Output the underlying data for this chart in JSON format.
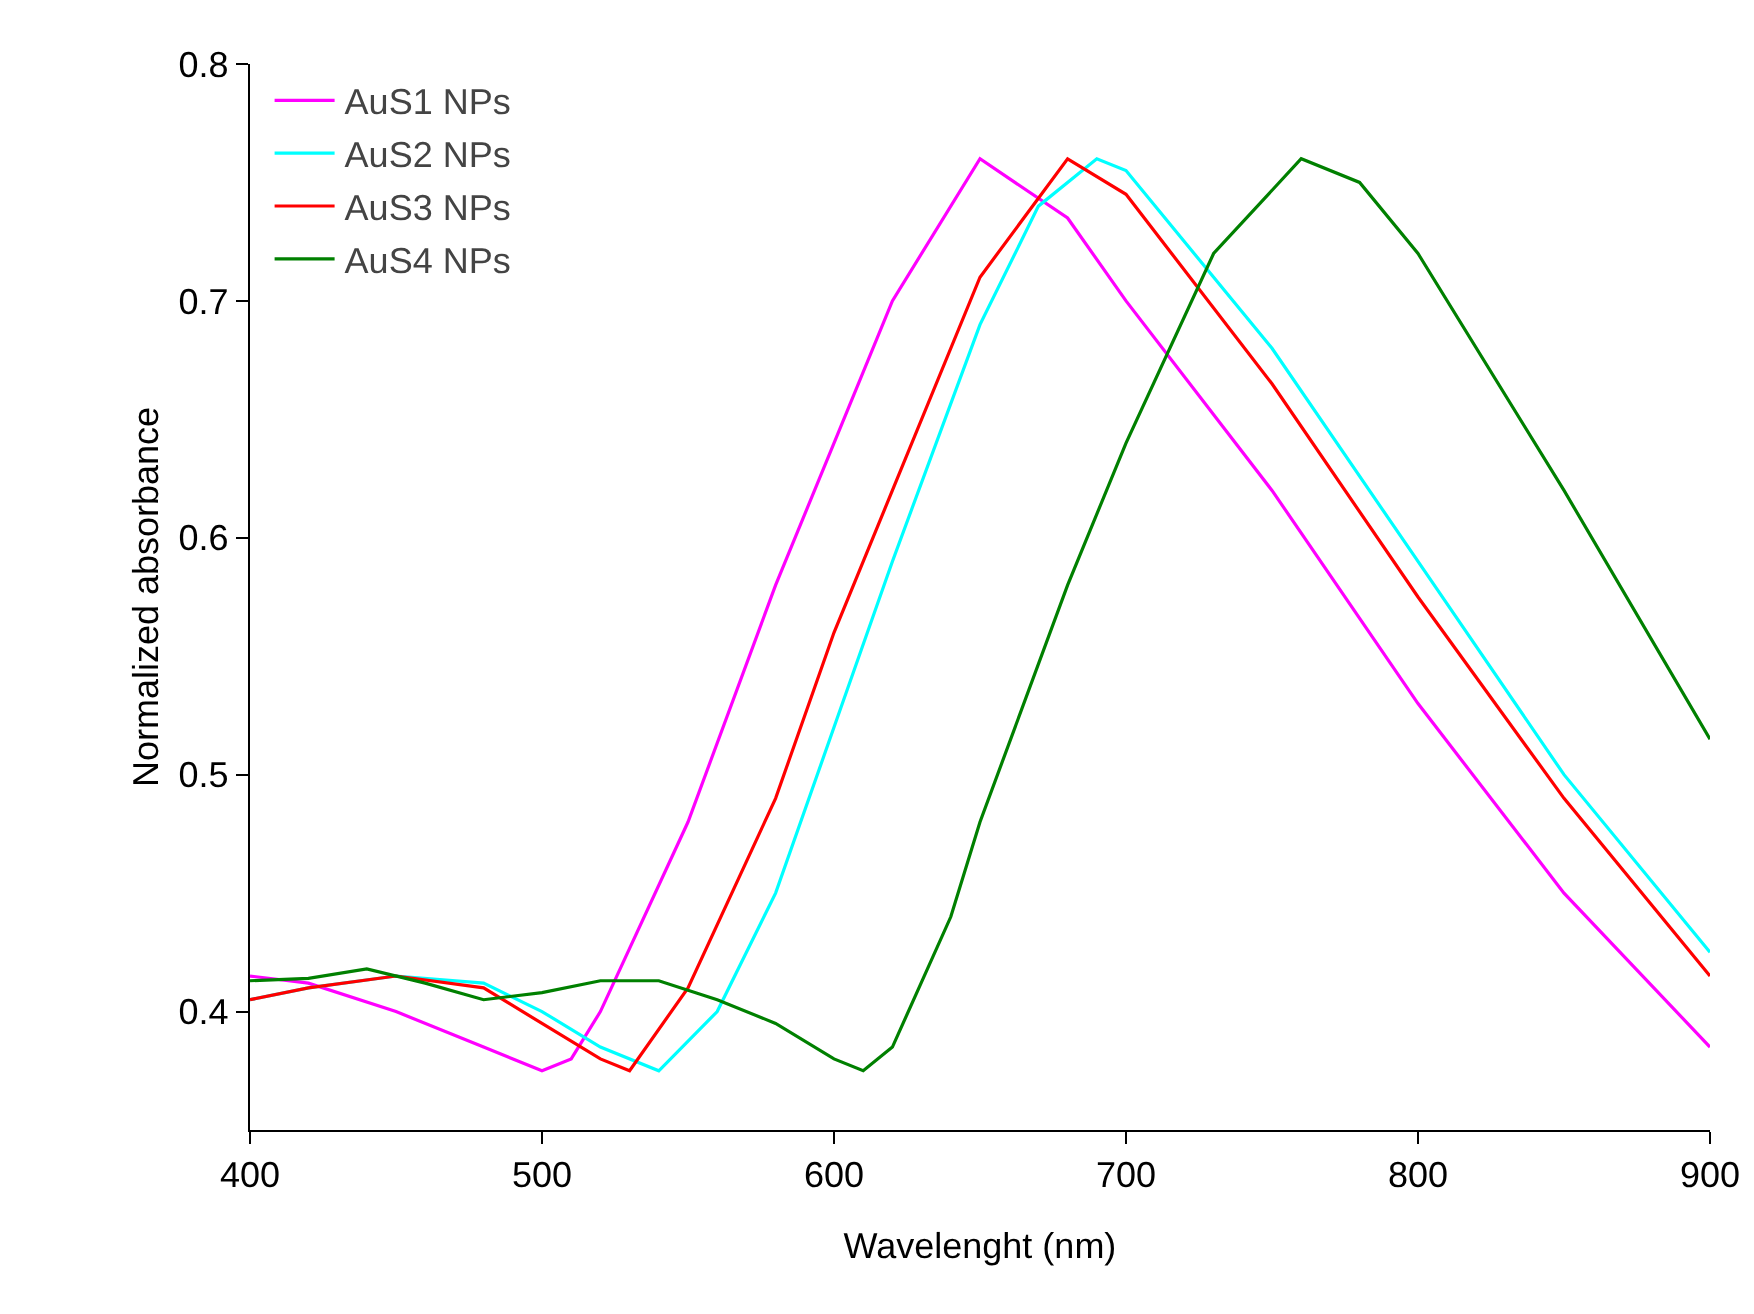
{
  "chart_data": {
    "type": "line",
    "xlabel": "Wavelenght (nm)",
    "ylabel": "Normalized absorbance",
    "xlim": [
      400,
      900
    ],
    "xticks": [
      400,
      500,
      600,
      700,
      800,
      900
    ],
    "ylim": [
      0.35,
      0.8
    ],
    "yticks": [
      0.4,
      0.5,
      0.6,
      0.7,
      0.8
    ],
    "grid": false,
    "legend": "top left",
    "marker": "none",
    "line_style": "solid",
    "series": [
      {
        "name": "AuS1 NPs",
        "color": "#ff00ff",
        "x": [
          400,
          420,
          450,
          480,
          500,
          510,
          520,
          550,
          580,
          600,
          620,
          650,
          680,
          700,
          750,
          800,
          850,
          900
        ],
        "values": [
          0.415,
          0.412,
          0.4,
          0.385,
          0.375,
          0.38,
          0.4,
          0.48,
          0.58,
          0.64,
          0.7,
          0.76,
          0.735,
          0.7,
          0.62,
          0.53,
          0.45,
          0.385
        ]
      },
      {
        "name": "AuS2 NPs",
        "color": "#00ffff",
        "x": [
          400,
          420,
          450,
          480,
          500,
          520,
          540,
          560,
          580,
          600,
          620,
          650,
          670,
          690,
          700,
          750,
          800,
          850,
          900
        ],
        "values": [
          0.405,
          0.41,
          0.415,
          0.412,
          0.4,
          0.385,
          0.375,
          0.4,
          0.45,
          0.52,
          0.59,
          0.69,
          0.74,
          0.76,
          0.755,
          0.68,
          0.59,
          0.5,
          0.425
        ]
      },
      {
        "name": "AuS3 NPs",
        "color": "#ff0000",
        "x": [
          400,
          420,
          450,
          480,
          500,
          520,
          530,
          550,
          580,
          600,
          620,
          650,
          680,
          700,
          750,
          800,
          850,
          900
        ],
        "values": [
          0.405,
          0.41,
          0.415,
          0.41,
          0.395,
          0.38,
          0.375,
          0.41,
          0.49,
          0.56,
          0.62,
          0.71,
          0.76,
          0.745,
          0.665,
          0.575,
          0.49,
          0.415
        ]
      },
      {
        "name": "AuS4 NPs",
        "color": "#008000",
        "x": [
          400,
          420,
          440,
          460,
          480,
          500,
          520,
          540,
          560,
          580,
          600,
          610,
          620,
          640,
          650,
          680,
          700,
          730,
          760,
          780,
          800,
          850,
          900
        ],
        "values": [
          0.413,
          0.414,
          0.418,
          0.412,
          0.405,
          0.408,
          0.413,
          0.413,
          0.405,
          0.395,
          0.38,
          0.375,
          0.385,
          0.44,
          0.48,
          0.58,
          0.64,
          0.72,
          0.76,
          0.75,
          0.72,
          0.62,
          0.515
        ]
      }
    ]
  }
}
